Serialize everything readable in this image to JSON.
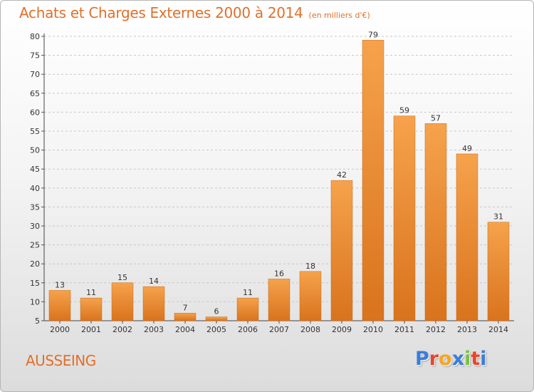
{
  "header": {
    "title": "Achats et Charges Externes 2000 à 2014",
    "subtitle": "(en milliers d'€)"
  },
  "footer": {
    "commune": "AUSSEING",
    "brand": "Proxiti",
    "brand_colors": [
      "#3b7dd8",
      "#e8452c",
      "#f5a623",
      "#3b7dd8",
      "#7ac143",
      "#e8452c",
      "#3b7dd8"
    ]
  },
  "colors": {
    "bar_light": "#f6a24c",
    "bar_dark": "#d9731d",
    "accent": "#e0702a",
    "grid": "#c8c8c8"
  },
  "chart_data": {
    "type": "bar",
    "title": "Achats et Charges Externes 2000 à 2014",
    "subtitle": "(en milliers d'€)",
    "categories": [
      "2000",
      "2001",
      "2002",
      "2003",
      "2004",
      "2005",
      "2006",
      "2007",
      "2008",
      "2009",
      "2010",
      "2011",
      "2012",
      "2013",
      "2014"
    ],
    "values": [
      13,
      11,
      15,
      14,
      7,
      6,
      11,
      16,
      18,
      42,
      79,
      59,
      57,
      49,
      31
    ],
    "ylim": [
      5,
      80
    ],
    "yticks": [
      5,
      10,
      15,
      20,
      25,
      30,
      35,
      40,
      45,
      50,
      55,
      60,
      65,
      70,
      75,
      80
    ],
    "xlabel": "",
    "ylabel": "",
    "grid": true,
    "data_labels": true
  }
}
